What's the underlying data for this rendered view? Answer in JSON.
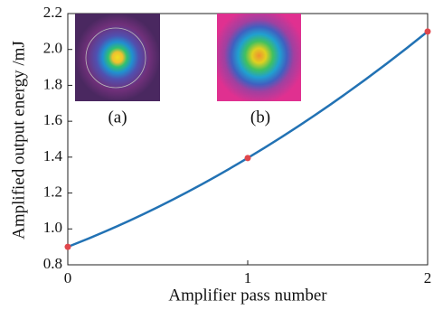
{
  "chart_data": {
    "type": "line",
    "x_label": "Amplifier pass number",
    "y_label": "Amplified output energy /mJ",
    "x": [
      0,
      1,
      2
    ],
    "series": [
      {
        "values": [
          0.9,
          1.395,
          2.1
        ],
        "color": "#2272b4",
        "marker_color": "#e0474c"
      }
    ],
    "xlim": [
      0,
      2
    ],
    "xticks": [
      0,
      1,
      2
    ],
    "ylim": [
      0.8,
      2.2
    ],
    "yticks": [
      0.8,
      {
        "value": 1,
        "label": "1.0"
      },
      1.2,
      1.4,
      1.6,
      1.8,
      {
        "value": 2,
        "label": "2.0"
      },
      2.2
    ],
    "annotations": [
      "(a)",
      "(b)"
    ]
  }
}
